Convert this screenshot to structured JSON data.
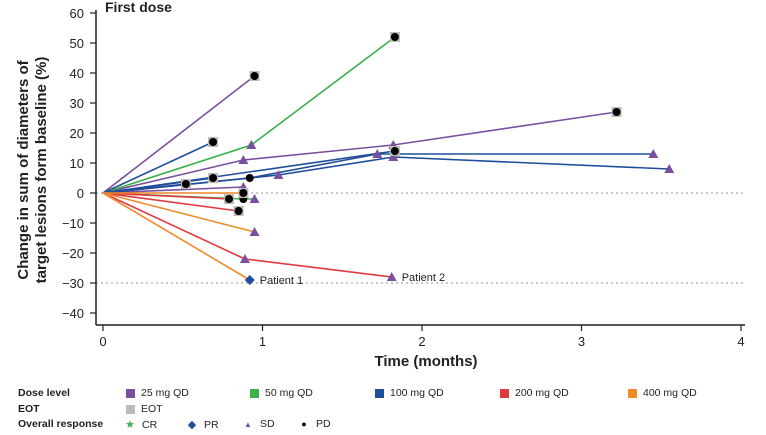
{
  "chart_data": {
    "type": "line",
    "title": "First dose",
    "xlabel": "Time (months)",
    "ylabel_lines": [
      "Change in sum of diameters of",
      "target lesions form baseline (%)"
    ],
    "xlim": [
      0,
      4
    ],
    "ylim": [
      -40,
      60
    ],
    "x_ticks": [
      0,
      1,
      2,
      3,
      4
    ],
    "x_tick_labels": [
      "0",
      "1",
      "2",
      "3",
      "4"
    ],
    "y_ticks": [
      60,
      50,
      40,
      30,
      20,
      10,
      0,
      -10,
      -20,
      -30,
      -40
    ],
    "y_tick_labels": [
      "60",
      "50",
      "40",
      "30",
      "20",
      "10",
      "0",
      "−10",
      "−20",
      "−30",
      "−40"
    ],
    "reference_lines": [
      0,
      -30
    ],
    "dose_colors": {
      "25 mg QD": "#7b4fa0",
      "50 mg QD": "#3cb04a",
      "100 mg QD": "#1f4e9a",
      "200 mg QD": "#e03a3e",
      "400 mg QD": "#f08a2a"
    },
    "series": [
      {
        "name": "25 mg QD - A",
        "dose": "25 mg QD",
        "x": [
          0,
          0.95
        ],
        "y": [
          0,
          39
        ],
        "response": "PD",
        "eot": true
      },
      {
        "name": "25 mg QD - B",
        "dose": "25 mg QD",
        "x": [
          0,
          0.88,
          1.82,
          3.22
        ],
        "y": [
          0,
          11,
          16,
          27
        ],
        "markers": [
          "",
          "SD",
          "SD",
          "PD"
        ],
        "eot": true
      },
      {
        "name": "25 mg QD - C",
        "dose": "25 mg QD",
        "x": [
          0,
          0.88
        ],
        "y": [
          0,
          2
        ],
        "response": "SD",
        "eot": false
      },
      {
        "name": "50 mg QD - A",
        "dose": "50 mg QD",
        "x": [
          0,
          0.93,
          1.83
        ],
        "y": [
          0,
          16,
          52
        ],
        "markers": [
          "",
          "SD",
          "PD"
        ],
        "eot": true
      },
      {
        "name": "50 mg QD - B",
        "dose": "50 mg QD",
        "x": [
          0,
          0.88,
          0.95
        ],
        "y": [
          0,
          -2,
          -2
        ],
        "markers": [
          "",
          "PD",
          "SD"
        ],
        "eot": false
      },
      {
        "name": "100 mg QD - A",
        "dose": "100 mg QD",
        "x": [
          0,
          0.69
        ],
        "y": [
          0,
          17
        ],
        "response": "PD",
        "eot": true
      },
      {
        "name": "100 mg QD - B",
        "dose": "100 mg QD",
        "x": [
          0,
          0.52
        ],
        "y": [
          0,
          3
        ],
        "response": "PD",
        "eot": true
      },
      {
        "name": "100 mg QD - C",
        "dose": "100 mg QD",
        "x": [
          0,
          0.69
        ],
        "y": [
          0,
          5
        ],
        "response": "PD",
        "eot": true
      },
      {
        "name": "100 mg QD - D",
        "dose": "100 mg QD",
        "x": [
          0,
          0.92,
          1.72,
          3.45
        ],
        "y": [
          0,
          5,
          13,
          13
        ],
        "markers": [
          "",
          "PD",
          "SD",
          "SD"
        ],
        "eot": false
      },
      {
        "name": "100 mg QD - E",
        "dose": "100 mg QD",
        "x": [
          0,
          1.1,
          1.82,
          3.55
        ],
        "y": [
          0,
          6,
          12,
          8
        ],
        "markers": [
          "",
          "SD",
          "SD",
          "SD"
        ],
        "eot": false
      },
      {
        "name": "100 mg QD - F",
        "dose": "100 mg QD",
        "x": [
          0,
          1.83
        ],
        "y": [
          0,
          14
        ],
        "response": "PD",
        "eot": true
      },
      {
        "name": "200 mg QD - A",
        "dose": "200 mg QD",
        "x": [
          0,
          0.79
        ],
        "y": [
          0,
          -2
        ],
        "response": "PD",
        "eot": true
      },
      {
        "name": "200 mg QD - B",
        "dose": "200 mg QD",
        "x": [
          0,
          0.85
        ],
        "y": [
          0,
          -6
        ],
        "response": "PD",
        "eot": true
      },
      {
        "name": "200 mg QD - C (Patient 2)",
        "dose": "200 mg QD",
        "x": [
          0,
          0.89,
          1.81
        ],
        "y": [
          0,
          -22,
          -28
        ],
        "markers": [
          "",
          "SD",
          "SD"
        ],
        "eot": false
      },
      {
        "name": "400 mg QD - A",
        "dose": "400 mg QD",
        "x": [
          0,
          0.88
        ],
        "y": [
          0,
          0
        ],
        "response": "PD",
        "eot": true
      },
      {
        "name": "400 mg QD - B",
        "dose": "400 mg QD",
        "x": [
          0,
          0.95
        ],
        "y": [
          0,
          -13
        ],
        "response": "SD",
        "eot": false
      },
      {
        "name": "400 mg QD - C (Patient 1)",
        "dose": "400 mg QD",
        "x": [
          0,
          0.92
        ],
        "y": [
          0,
          -29
        ],
        "response": "PR",
        "eot": false
      }
    ],
    "annotations": [
      {
        "text": "Patient 1",
        "x": 0.92,
        "y": -29
      },
      {
        "text": "Patient 2",
        "x": 1.81,
        "y": -28
      }
    ],
    "grid": false
  },
  "legend": {
    "dose_heading": "Dose level",
    "eot_heading": "EOT",
    "response_heading": "Overall response",
    "doses": [
      {
        "label": "25 mg QD",
        "color": "#7b4fa0"
      },
      {
        "label": "50 mg QD",
        "color": "#3cb04a"
      },
      {
        "label": "100 mg QD",
        "color": "#1f4e9a"
      },
      {
        "label": "200 mg QD",
        "color": "#e03a3e"
      },
      {
        "label": "400 mg QD",
        "color": "#f08a2a"
      }
    ],
    "eot": {
      "label": "EOT",
      "color": "#bdbbb8"
    },
    "responses": [
      {
        "label": "CR",
        "symbol": "★",
        "color": "#3cb04a",
        "icon": "star-icon"
      },
      {
        "label": "PR",
        "symbol": "◆",
        "color": "#1f4e9a",
        "icon": "diamond-icon"
      },
      {
        "label": "SD",
        "symbol": "▲",
        "color": "#7b4fa0",
        "icon": "triangle-icon"
      },
      {
        "label": "PD",
        "symbol": "●",
        "color": "#000000",
        "icon": "circle-icon"
      }
    ]
  }
}
